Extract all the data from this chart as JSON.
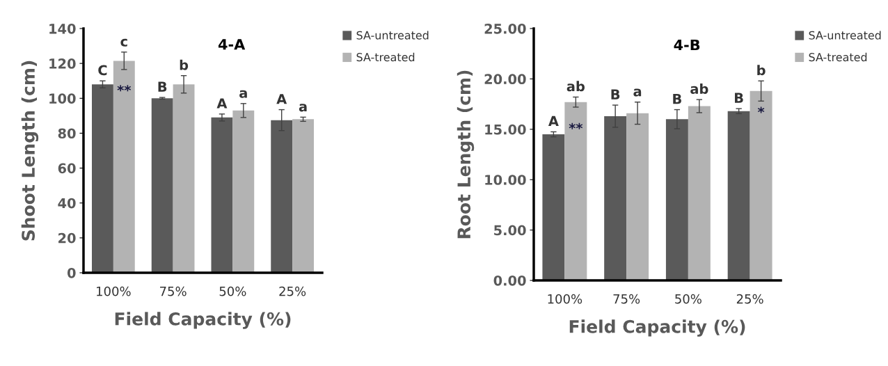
{
  "chart_data": [
    {
      "type": "bar",
      "title": "4-A",
      "xlabel": "Field Capacity (%)",
      "ylabel": "Shoot Length (cm)",
      "categories": [
        "100%",
        "75%",
        "50%",
        "25%"
      ],
      "ylim": [
        0,
        140
      ],
      "yticks": [
        0,
        20,
        40,
        60,
        80,
        100,
        120,
        140
      ],
      "legend": "top right",
      "grid": false,
      "series": [
        {
          "name": "SA-untreated",
          "color": "#5a5a5a",
          "values": [
            108,
            100,
            89,
            87.5
          ],
          "errors": [
            2,
            0.5,
            2,
            6
          ],
          "value_labels": [
            "C",
            "B",
            "A",
            "A"
          ]
        },
        {
          "name": "SA-treated",
          "color": "#b3b3b3",
          "values": [
            121.5,
            108,
            93,
            88
          ],
          "errors": [
            5,
            5,
            4,
            1.2
          ],
          "value_labels": [
            "c",
            "b",
            "a",
            "a"
          ]
        }
      ],
      "annotations": [
        {
          "text": "**",
          "x": "100%",
          "y": 104
        }
      ]
    },
    {
      "type": "bar",
      "title": "4-B",
      "xlabel": "Field Capacity (%)",
      "ylabel": "Root Length (cm)",
      "categories": [
        "100%",
        "75%",
        "50%",
        "25%"
      ],
      "ylim": [
        0,
        25
      ],
      "yticks": [
        {
          "value": 0,
          "label": "0.00"
        },
        {
          "value": 5,
          "label": "5.00"
        },
        {
          "value": 10,
          "label": "10.00"
        },
        {
          "value": 15,
          "label": "15.00"
        },
        {
          "value": 20,
          "label": "20.00"
        },
        {
          "value": 25,
          "label": "25.00"
        }
      ],
      "legend": "top right",
      "grid": false,
      "series": [
        {
          "name": "SA-untreated",
          "color": "#5a5a5a",
          "values": [
            14.5,
            16.3,
            16.0,
            16.8
          ],
          "errors": [
            0.25,
            1.1,
            0.95,
            0.25
          ],
          "value_labels": [
            "A",
            "B",
            "B",
            "B"
          ]
        },
        {
          "name": "SA-treated",
          "color": "#b3b3b3",
          "values": [
            17.7,
            16.6,
            17.3,
            18.8
          ],
          "errors": [
            0.5,
            1.1,
            0.65,
            1.0
          ],
          "value_labels": [
            "ab",
            "a",
            "ab",
            "b"
          ]
        }
      ],
      "annotations": [
        {
          "text": "**",
          "x": "100%",
          "y": 15.0
        },
        {
          "text": "*",
          "x": "25%",
          "y": 16.6
        }
      ]
    }
  ]
}
